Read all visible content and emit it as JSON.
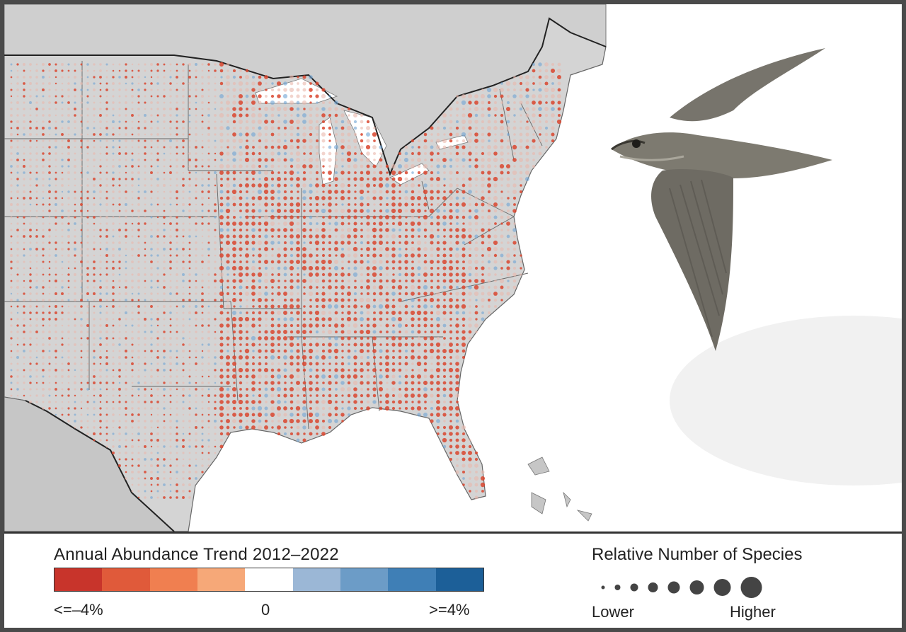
{
  "legend": {
    "title": "Annual Abundance Trend  2012–2022",
    "min_label": "<=–4%",
    "mid_label": "0",
    "max_label": ">=4%",
    "colors": [
      "#c8342b",
      "#e05a3a",
      "#f07f50",
      "#f6a878",
      "#ffffff",
      "#9bb7d6",
      "#6c9cc7",
      "#3f7fb6",
      "#1c5f98"
    ]
  },
  "size_legend": {
    "title": "Relative Number of Species",
    "low_label": "Lower",
    "high_label": "Higher",
    "steps": 8
  },
  "map": {
    "land_color": "#d4d4d4",
    "water_color": "#ffffff",
    "ocean_color": "#ffffff",
    "boundary_color": "#555555",
    "decline_color": "#d9452e",
    "increase_color": "#6ea3d3"
  },
  "bird": {
    "icon": "chimney-swift-icon",
    "body_color": "#7d7a70"
  }
}
